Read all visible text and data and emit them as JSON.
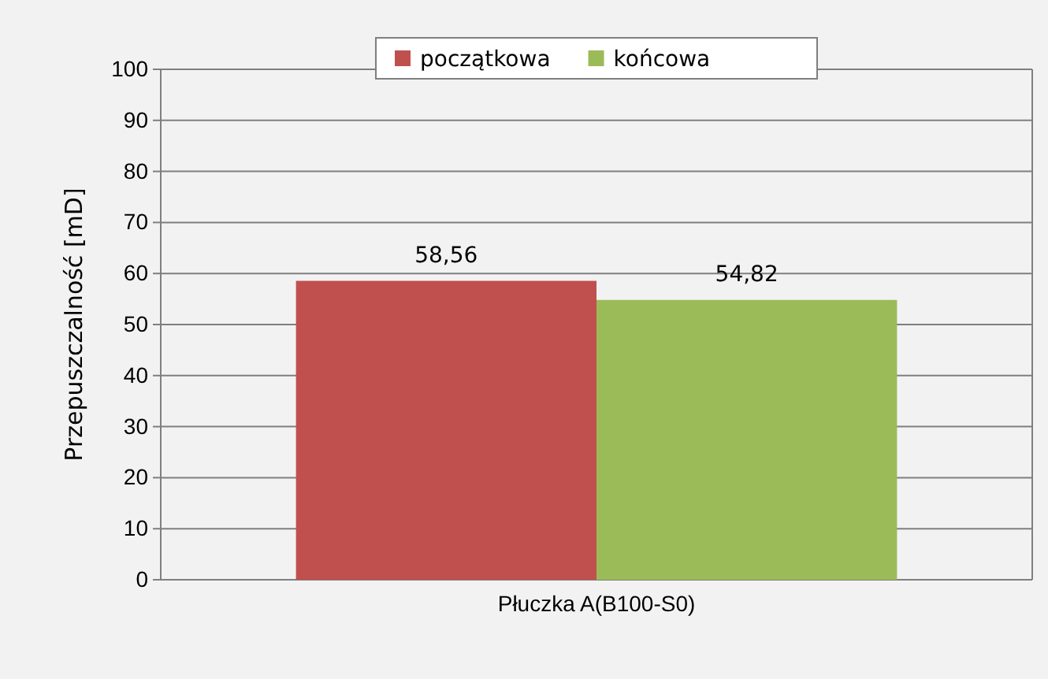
{
  "chart_data": {
    "type": "bar",
    "ylabel": "Przepuszczalność [mD]",
    "categories": [
      "Płuczka A(B100-S0)"
    ],
    "series": [
      {
        "name": "początkowa",
        "color": "#c0504d",
        "values": [
          58.56
        ],
        "value_labels": [
          "58,56"
        ]
      },
      {
        "name": "końcowa",
        "color": "#9bbb59",
        "values": [
          54.82
        ],
        "value_labels": [
          "54,82"
        ]
      }
    ],
    "ylim": [
      0,
      100
    ],
    "yticks": [
      0,
      10,
      20,
      30,
      40,
      50,
      60,
      70,
      80,
      90,
      100
    ],
    "grid": "y",
    "legend": "top"
  }
}
